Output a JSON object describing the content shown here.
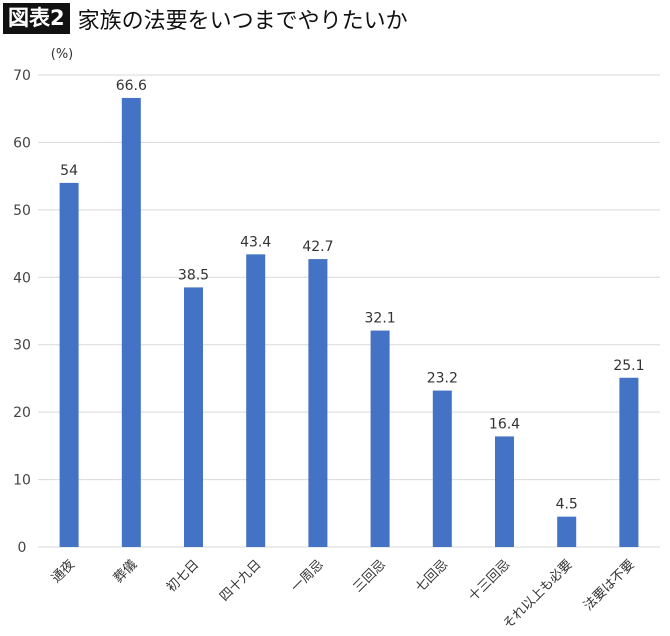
{
  "header": {
    "badge": "図表2",
    "title": "家族の法要をいつまでやりたいか"
  },
  "chart_data": {
    "type": "bar",
    "title": "家族の法要をいつまでやりたいか",
    "ylabel": "(%)",
    "xlabel": "",
    "ylim": [
      0,
      70
    ],
    "yticks": [
      0,
      10,
      20,
      30,
      40,
      50,
      60,
      70
    ],
    "grid": true,
    "bar_color": "#4472C4",
    "categories": [
      "通夜",
      "葬儀",
      "初七日",
      "四十九日",
      "一周忌",
      "三回忌",
      "七回忌",
      "十三回忌",
      "それ以上も必要",
      "法要は不要"
    ],
    "values": [
      54,
      66.6,
      38.5,
      43.4,
      42.7,
      32.1,
      23.2,
      16.4,
      4.5,
      25.1
    ],
    "data_labels": [
      "54",
      "66.6",
      "38.5",
      "43.4",
      "42.7",
      "32.1",
      "23.2",
      "16.4",
      "4.5",
      "25.1"
    ]
  }
}
